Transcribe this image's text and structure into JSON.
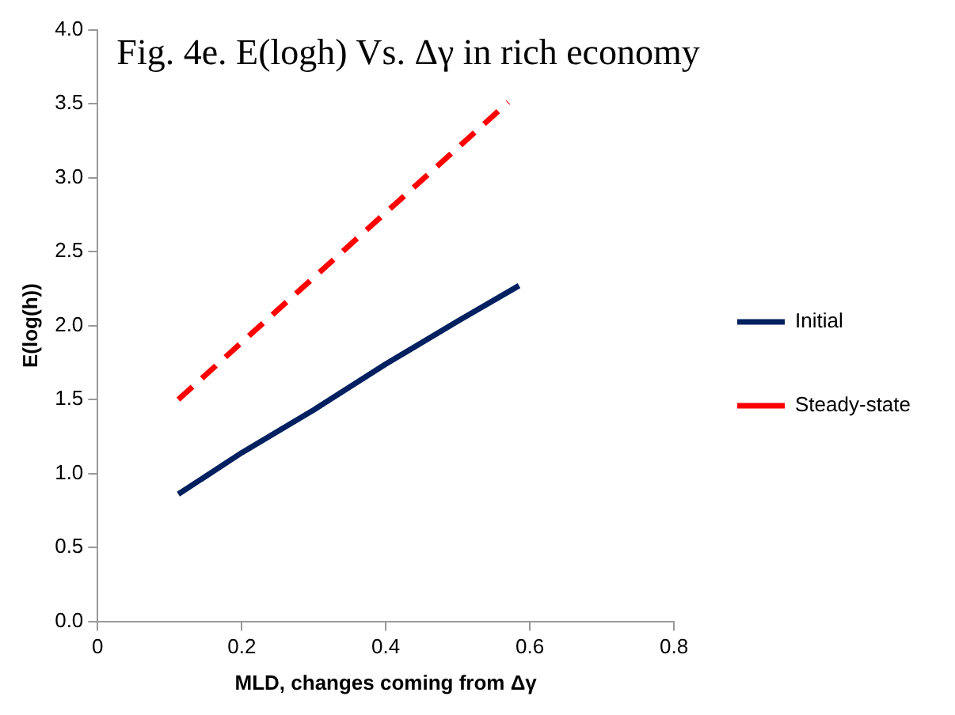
{
  "chart_data": {
    "type": "line",
    "title": "Fig. 4e. E(logh) Vs. Δγ in rich economy",
    "xlabel": "MLD, changes coming from Δγ",
    "ylabel": "E(log(h))",
    "series": [
      {
        "name": "Initial",
        "color": "#002060",
        "line_style": "solid",
        "x": [
          0.112,
          0.2,
          0.3,
          0.4,
          0.5,
          0.585
        ],
        "values": [
          0.86,
          1.14,
          1.43,
          1.74,
          2.03,
          2.27
        ]
      },
      {
        "name": "Steady-state",
        "color": "#ff0000",
        "line_style": "dashed",
        "x": [
          0.112,
          0.57
        ],
        "values": [
          1.5,
          3.51
        ]
      }
    ],
    "xlim": [
      0,
      0.8
    ],
    "xticks": [
      {
        "value": 0,
        "label": "0"
      },
      0.2,
      0.4,
      0.6,
      0.8
    ],
    "ylim": [
      0,
      4
    ],
    "yticks": [
      {
        "value": 0,
        "label": "0.0"
      },
      {
        "value": 0.5,
        "label": "0.5"
      },
      {
        "value": 1,
        "label": "1.0"
      },
      {
        "value": 1.5,
        "label": "1.5"
      },
      {
        "value": 2,
        "label": "2.0"
      },
      {
        "value": 2.5,
        "label": "2.5"
      },
      {
        "value": 3,
        "label": "3.0"
      },
      {
        "value": 3.5,
        "label": "3.5"
      },
      {
        "value": 4,
        "label": "4.0"
      }
    ],
    "grid": false,
    "legend": "right",
    "marker": "none"
  }
}
